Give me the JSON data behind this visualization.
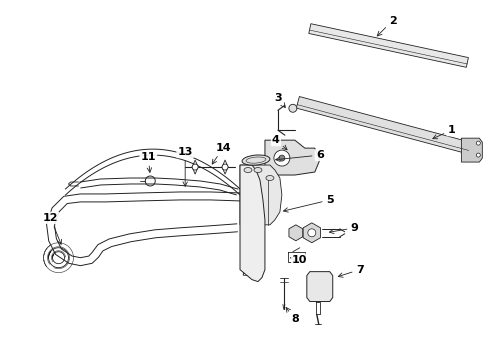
{
  "bg_color": "#ffffff",
  "line_color": "#222222",
  "label_color": "#000000",
  "fig_width": 4.89,
  "fig_height": 3.6,
  "dpi": 100
}
